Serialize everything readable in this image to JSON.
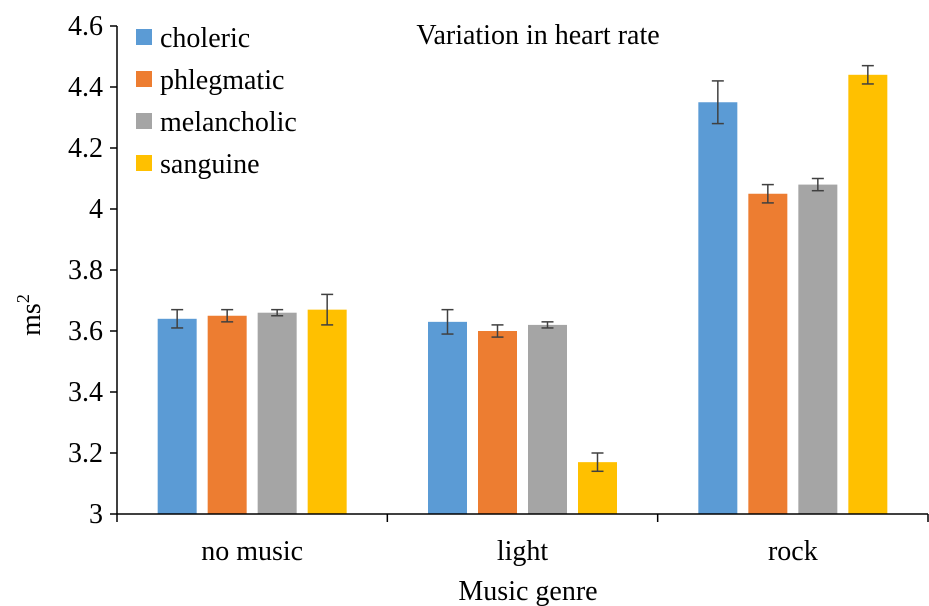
{
  "chart_data": {
    "type": "bar",
    "title": "Variation in heart rate",
    "xlabel": "Music genre",
    "ylabel": "ms",
    "ylabel_superscript": "2",
    "categories": [
      "no music",
      "light",
      "rock"
    ],
    "ylim": [
      3,
      4.6
    ],
    "yticks": [
      "3",
      "3.2",
      "3.4",
      "3.6",
      "3.8",
      "4",
      "4.2",
      "4.4",
      "4.6"
    ],
    "legend_position": "top-left",
    "grid": false,
    "series": [
      {
        "name": "choleric",
        "color": "#5B9BD5",
        "values": [
          3.64,
          3.63,
          4.35
        ],
        "errors": [
          0.03,
          0.04,
          0.07
        ]
      },
      {
        "name": "phlegmatic",
        "color": "#ED7D31",
        "values": [
          3.65,
          3.6,
          4.05
        ],
        "errors": [
          0.02,
          0.02,
          0.03
        ]
      },
      {
        "name": "melancholic",
        "color": "#A5A5A5",
        "values": [
          3.66,
          3.62,
          4.08
        ],
        "errors": [
          0.01,
          0.01,
          0.02
        ]
      },
      {
        "name": "sanguine",
        "color": "#FFC000",
        "values": [
          3.67,
          3.17,
          4.44
        ],
        "errors": [
          0.05,
          0.03,
          0.03
        ]
      }
    ]
  }
}
